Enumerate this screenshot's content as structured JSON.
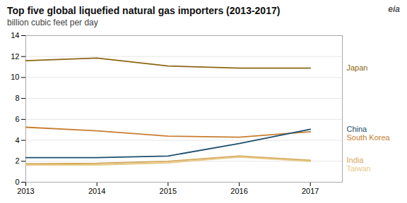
{
  "chart_data": {
    "type": "line",
    "title": "Top five global liquefied natural gas importers (2013-2017)",
    "subtitle": "billion cubic feet per day",
    "annotations": [
      {
        "text": "eia"
      }
    ],
    "x": [
      2013,
      2014,
      2015,
      2016,
      2017
    ],
    "series": [
      {
        "name": "Japan",
        "color": "#8B6510",
        "values": [
          11.6,
          11.85,
          11.1,
          10.9,
          10.9
        ]
      },
      {
        "name": "South Korea",
        "color": "#C87D2F",
        "values": [
          5.25,
          4.9,
          4.4,
          4.3,
          4.82
        ]
      },
      {
        "name": "China",
        "color": "#1C4E6E",
        "values": [
          2.35,
          2.35,
          2.5,
          3.7,
          5.05
        ]
      },
      {
        "name": "India",
        "color": "#D4A85A",
        "values": [
          1.75,
          1.8,
          2.0,
          2.5,
          2.1
        ]
      },
      {
        "name": "Taiwan",
        "color": "#E8C987",
        "values": [
          1.65,
          1.65,
          1.85,
          2.4,
          2.0
        ]
      }
    ],
    "xlim": [
      2013,
      2017.45
    ],
    "ylim": [
      0,
      14
    ],
    "xticks": [
      2013,
      2014,
      2015,
      2016,
      2017
    ],
    "yticks": [
      0,
      2,
      4,
      6,
      8,
      10,
      12,
      14
    ],
    "grid": "y"
  }
}
